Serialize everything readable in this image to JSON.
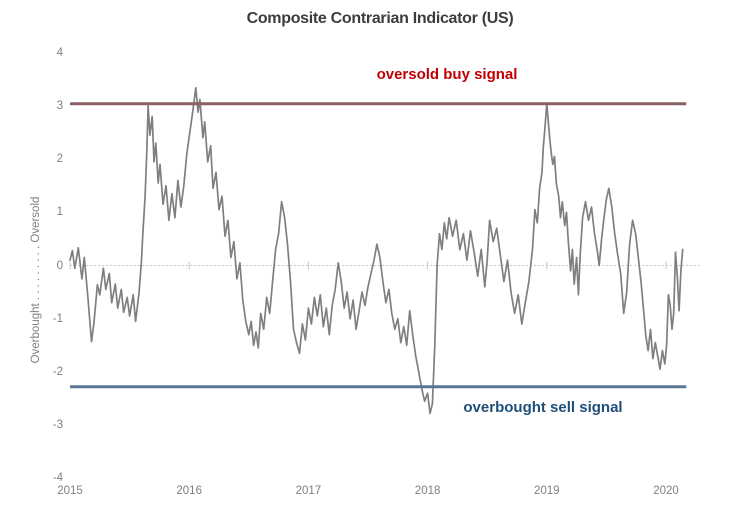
{
  "title": "Composite Contrarian Indicator (US)",
  "y_axis_title": "Overbought  .  .  .  .  .  .  .  .  .  Oversold",
  "annotations": {
    "buy": {
      "text": "oversold buy signal",
      "color": "#c00000"
    },
    "sell": {
      "text": "overbought sell signal",
      "color": "#1f4e79"
    }
  },
  "colors": {
    "indicator_line": "#7f7f7f",
    "buy_line": "#8c6063",
    "sell_line": "#5b7795",
    "zero_line": "#c9c9c9",
    "tick_text": "#7f7f7f",
    "title_text": "#3d3d3d"
  },
  "chart_data": {
    "type": "line",
    "title": "Composite Contrarian Indicator (US)",
    "xlabel": "",
    "ylabel": "Overbought . . . . . . . . . Oversold",
    "xlim": [
      2015,
      2020.35
    ],
    "ylim": [
      -4,
      4
    ],
    "x_ticks": [
      2015,
      2016,
      2017,
      2018,
      2019,
      2020
    ],
    "y_ticks": [
      4,
      3,
      2,
      1,
      0,
      -1,
      -2,
      -3,
      -4
    ],
    "grid": "dotted zero line with small year cross-ticks, no other gridlines",
    "legend": "none",
    "reference_lines": [
      {
        "name": "oversold buy signal",
        "value": 3.04,
        "x_start": 2015.0,
        "x_end": 2020.17
      },
      {
        "name": "overbought sell signal",
        "value": -2.28,
        "x_start": 2015.0,
        "x_end": 2020.17
      }
    ],
    "series": [
      {
        "name": "composite contrarian indicator",
        "points": [
          [
            2015.0,
            0.1
          ],
          [
            2015.02,
            0.28
          ],
          [
            2015.04,
            -0.05
          ],
          [
            2015.07,
            0.33
          ],
          [
            2015.1,
            -0.25
          ],
          [
            2015.12,
            0.15
          ],
          [
            2015.15,
            -0.6
          ],
          [
            2015.18,
            -1.43
          ],
          [
            2015.2,
            -1.1
          ],
          [
            2015.23,
            -0.36
          ],
          [
            2015.25,
            -0.55
          ],
          [
            2015.28,
            -0.05
          ],
          [
            2015.3,
            -0.45
          ],
          [
            2015.33,
            -0.15
          ],
          [
            2015.35,
            -0.7
          ],
          [
            2015.38,
            -0.35
          ],
          [
            2015.4,
            -0.8
          ],
          [
            2015.43,
            -0.45
          ],
          [
            2015.45,
            -0.88
          ],
          [
            2015.48,
            -0.6
          ],
          [
            2015.5,
            -0.95
          ],
          [
            2015.53,
            -0.55
          ],
          [
            2015.55,
            -1.05
          ],
          [
            2015.58,
            -0.5
          ],
          [
            2015.6,
            0.1
          ],
          [
            2015.61,
            0.55
          ],
          [
            2015.63,
            1.3
          ],
          [
            2015.645,
            2.2
          ],
          [
            2015.655,
            3.0
          ],
          [
            2015.67,
            2.45
          ],
          [
            2015.69,
            2.8
          ],
          [
            2015.705,
            1.95
          ],
          [
            2015.72,
            2.3
          ],
          [
            2015.74,
            1.55
          ],
          [
            2015.755,
            1.9
          ],
          [
            2015.78,
            1.15
          ],
          [
            2015.805,
            1.5
          ],
          [
            2015.83,
            0.85
          ],
          [
            2015.855,
            1.35
          ],
          [
            2015.88,
            0.9
          ],
          [
            2015.905,
            1.6
          ],
          [
            2015.93,
            1.1
          ],
          [
            2015.955,
            1.5
          ],
          [
            2015.98,
            2.1
          ],
          [
            2016.005,
            2.5
          ],
          [
            2016.03,
            2.9
          ],
          [
            2016.055,
            3.34
          ],
          [
            2016.075,
            2.88
          ],
          [
            2016.09,
            3.12
          ],
          [
            2016.115,
            2.4
          ],
          [
            2016.13,
            2.7
          ],
          [
            2016.155,
            1.95
          ],
          [
            2016.18,
            2.25
          ],
          [
            2016.2,
            1.45
          ],
          [
            2016.225,
            1.75
          ],
          [
            2016.25,
            1.05
          ],
          [
            2016.275,
            1.3
          ],
          [
            2016.3,
            0.55
          ],
          [
            2016.325,
            0.85
          ],
          [
            2016.35,
            0.15
          ],
          [
            2016.375,
            0.45
          ],
          [
            2016.4,
            -0.25
          ],
          [
            2016.425,
            0.05
          ],
          [
            2016.45,
            -0.65
          ],
          [
            2016.475,
            -1.05
          ],
          [
            2016.5,
            -1.3
          ],
          [
            2016.52,
            -1.05
          ],
          [
            2016.54,
            -1.5
          ],
          [
            2016.56,
            -1.25
          ],
          [
            2016.58,
            -1.55
          ],
          [
            2016.6,
            -0.9
          ],
          [
            2016.625,
            -1.2
          ],
          [
            2016.65,
            -0.6
          ],
          [
            2016.675,
            -0.9
          ],
          [
            2016.7,
            -0.3
          ],
          [
            2016.725,
            0.3
          ],
          [
            2016.75,
            0.6
          ],
          [
            2016.775,
            1.2
          ],
          [
            2016.8,
            0.9
          ],
          [
            2016.825,
            0.4
          ],
          [
            2016.85,
            -0.3
          ],
          [
            2016.875,
            -1.2
          ],
          [
            2016.9,
            -1.45
          ],
          [
            2016.925,
            -1.65
          ],
          [
            2016.95,
            -1.1
          ],
          [
            2016.975,
            -1.4
          ],
          [
            2017.0,
            -0.8
          ],
          [
            2017.025,
            -1.1
          ],
          [
            2017.05,
            -0.6
          ],
          [
            2017.075,
            -0.95
          ],
          [
            2017.1,
            -0.55
          ],
          [
            2017.125,
            -1.15
          ],
          [
            2017.15,
            -0.8
          ],
          [
            2017.175,
            -1.3
          ],
          [
            2017.2,
            -0.75
          ],
          [
            2017.225,
            -0.45
          ],
          [
            2017.25,
            0.05
          ],
          [
            2017.275,
            -0.3
          ],
          [
            2017.3,
            -0.8
          ],
          [
            2017.325,
            -0.5
          ],
          [
            2017.35,
            -1.0
          ],
          [
            2017.375,
            -0.65
          ],
          [
            2017.4,
            -1.2
          ],
          [
            2017.425,
            -0.85
          ],
          [
            2017.45,
            -0.5
          ],
          [
            2017.475,
            -0.75
          ],
          [
            2017.5,
            -0.4
          ],
          [
            2017.525,
            -0.15
          ],
          [
            2017.55,
            0.1
          ],
          [
            2017.575,
            0.4
          ],
          [
            2017.6,
            0.15
          ],
          [
            2017.625,
            -0.3
          ],
          [
            2017.65,
            -0.7
          ],
          [
            2017.675,
            -0.45
          ],
          [
            2017.7,
            -0.9
          ],
          [
            2017.725,
            -1.2
          ],
          [
            2017.75,
            -1.0
          ],
          [
            2017.775,
            -1.45
          ],
          [
            2017.8,
            -1.15
          ],
          [
            2017.825,
            -1.5
          ],
          [
            2017.85,
            -0.85
          ],
          [
            2017.875,
            -1.3
          ],
          [
            2017.9,
            -1.7
          ],
          [
            2017.925,
            -2.0
          ],
          [
            2017.95,
            -2.3
          ],
          [
            2017.975,
            -2.55
          ],
          [
            2018.0,
            -2.4
          ],
          [
            2018.02,
            -2.78
          ],
          [
            2018.04,
            -2.6
          ],
          [
            2018.06,
            -1.5
          ],
          [
            2018.08,
            0.0
          ],
          [
            2018.1,
            0.6
          ],
          [
            2018.12,
            0.3
          ],
          [
            2018.14,
            0.8
          ],
          [
            2018.16,
            0.5
          ],
          [
            2018.18,
            0.9
          ],
          [
            2018.21,
            0.55
          ],
          [
            2018.24,
            0.85
          ],
          [
            2018.27,
            0.3
          ],
          [
            2018.3,
            0.6
          ],
          [
            2018.33,
            0.1
          ],
          [
            2018.36,
            0.65
          ],
          [
            2018.39,
            0.25
          ],
          [
            2018.42,
            -0.2
          ],
          [
            2018.45,
            0.3
          ],
          [
            2018.48,
            -0.4
          ],
          [
            2018.5,
            0.1
          ],
          [
            2018.52,
            0.85
          ],
          [
            2018.55,
            0.45
          ],
          [
            2018.58,
            0.7
          ],
          [
            2018.61,
            0.2
          ],
          [
            2018.64,
            -0.3
          ],
          [
            2018.67,
            0.1
          ],
          [
            2018.7,
            -0.5
          ],
          [
            2018.73,
            -0.9
          ],
          [
            2018.76,
            -0.55
          ],
          [
            2018.79,
            -1.1
          ],
          [
            2018.82,
            -0.7
          ],
          [
            2018.85,
            -0.3
          ],
          [
            2018.88,
            0.3
          ],
          [
            2018.9,
            1.05
          ],
          [
            2018.92,
            0.8
          ],
          [
            2018.94,
            1.45
          ],
          [
            2018.96,
            1.75
          ],
          [
            2018.97,
            2.2
          ],
          [
            2018.985,
            2.6
          ],
          [
            2019.0,
            3.05
          ],
          [
            2019.02,
            2.5
          ],
          [
            2019.035,
            2.15
          ],
          [
            2019.05,
            1.9
          ],
          [
            2019.065,
            2.05
          ],
          [
            2019.08,
            1.55
          ],
          [
            2019.1,
            1.3
          ],
          [
            2019.115,
            0.9
          ],
          [
            2019.13,
            1.2
          ],
          [
            2019.15,
            0.75
          ],
          [
            2019.165,
            1.0
          ],
          [
            2019.18,
            0.45
          ],
          [
            2019.2,
            -0.1
          ],
          [
            2019.215,
            0.3
          ],
          [
            2019.23,
            -0.35
          ],
          [
            2019.25,
            0.15
          ],
          [
            2019.265,
            -0.55
          ],
          [
            2019.28,
            0.2
          ],
          [
            2019.3,
            0.9
          ],
          [
            2019.325,
            1.2
          ],
          [
            2019.35,
            0.85
          ],
          [
            2019.375,
            1.1
          ],
          [
            2019.4,
            0.6
          ],
          [
            2019.425,
            0.25
          ],
          [
            2019.44,
            0.0
          ],
          [
            2019.46,
            0.5
          ],
          [
            2019.48,
            0.9
          ],
          [
            2019.5,
            1.25
          ],
          [
            2019.52,
            1.45
          ],
          [
            2019.545,
            1.1
          ],
          [
            2019.57,
            0.6
          ],
          [
            2019.595,
            0.2
          ],
          [
            2019.62,
            -0.15
          ],
          [
            2019.645,
            -0.9
          ],
          [
            2019.67,
            -0.5
          ],
          [
            2019.695,
            0.4
          ],
          [
            2019.72,
            0.85
          ],
          [
            2019.745,
            0.6
          ],
          [
            2019.77,
            0.1
          ],
          [
            2019.79,
            -0.3
          ],
          [
            2019.81,
            -0.8
          ],
          [
            2019.83,
            -1.3
          ],
          [
            2019.85,
            -1.6
          ],
          [
            2019.87,
            -1.2
          ],
          [
            2019.89,
            -1.75
          ],
          [
            2019.91,
            -1.45
          ],
          [
            2019.93,
            -1.7
          ],
          [
            2019.95,
            -1.95
          ],
          [
            2019.97,
            -1.6
          ],
          [
            2019.99,
            -1.85
          ],
          [
            2020.005,
            -1.5
          ],
          [
            2020.02,
            -0.55
          ],
          [
            2020.035,
            -0.75
          ],
          [
            2020.05,
            -1.2
          ],
          [
            2020.065,
            -0.9
          ],
          [
            2020.08,
            0.25
          ],
          [
            2020.095,
            -0.2
          ],
          [
            2020.11,
            -0.85
          ],
          [
            2020.125,
            -0.1
          ],
          [
            2020.14,
            0.3
          ]
        ]
      }
    ]
  }
}
